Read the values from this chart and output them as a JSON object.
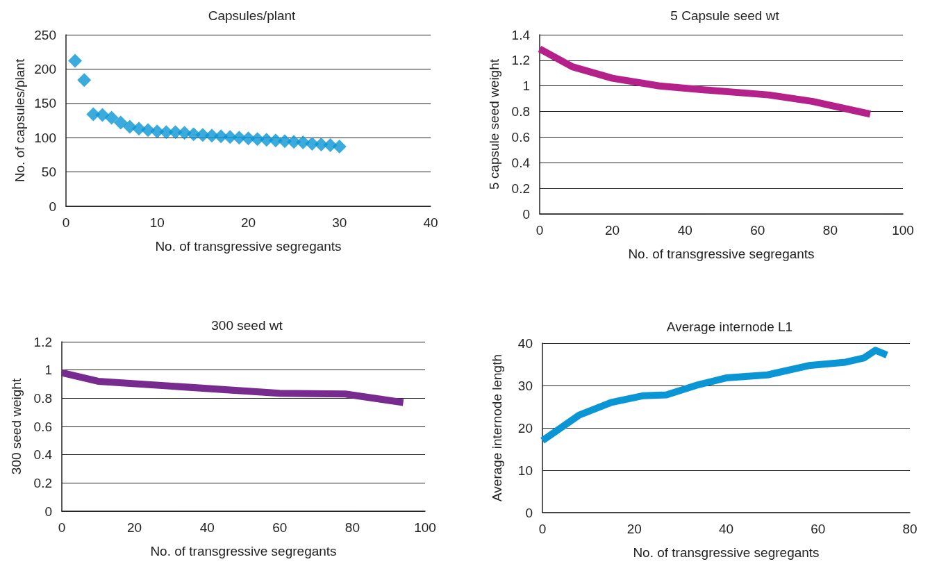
{
  "chart_data": [
    {
      "type": "scatter",
      "title": "Capsules/plant",
      "xlabel": "No. of transgressive segregants",
      "ylabel": "No. of capsules/plant",
      "marker": "diamond",
      "grid": "y",
      "color": "#0a96d4",
      "x": [
        1,
        2,
        3,
        4,
        5,
        6,
        7,
        8,
        9,
        10,
        11,
        12,
        13,
        14,
        15,
        16,
        17,
        18,
        19,
        20,
        21,
        22,
        23,
        24,
        25,
        26,
        27,
        28,
        29,
        30
      ],
      "values": [
        212,
        184,
        134,
        133,
        129,
        122,
        116,
        113,
        111,
        109,
        108,
        108,
        107,
        105,
        104,
        103,
        102,
        101,
        100,
        99,
        98,
        97,
        96,
        95,
        94,
        93,
        91,
        90,
        89,
        87
      ],
      "xlim": [
        0,
        40
      ],
      "xticks": [
        0,
        10,
        20,
        30,
        40
      ],
      "ylim": [
        0,
        250
      ],
      "yticks": [
        0,
        50,
        100,
        150,
        200,
        250
      ]
    },
    {
      "type": "line",
      "title": "5 Capsule seed wt",
      "xlabel": "No. of transgressive segregants",
      "ylabel": "5 capsule seed weight",
      "grid": "y",
      "color": "#b5218a",
      "x": [
        0,
        9,
        20,
        33,
        45,
        63,
        75,
        91
      ],
      "values": [
        1.29,
        1.15,
        1.06,
        1.0,
        0.97,
        0.93,
        0.88,
        0.78
      ],
      "xlim": [
        0,
        100
      ],
      "xticks": [
        0,
        20,
        40,
        60,
        80,
        100
      ],
      "ylim": [
        0,
        1.4
      ],
      "yticks": [
        0,
        0.2,
        0.4,
        0.6,
        0.8,
        1,
        1.2,
        1.4
      ]
    },
    {
      "type": "line",
      "title": "300 seed wt",
      "xlabel": "No. of transgressive segregants",
      "ylabel": "300 seed weight",
      "grid": "y",
      "color": "#772b8e",
      "x": [
        0,
        10,
        60,
        78,
        94
      ],
      "values": [
        0.98,
        0.92,
        0.835,
        0.83,
        0.77
      ],
      "xlim": [
        0,
        100
      ],
      "xticks": [
        0,
        20,
        40,
        60,
        80,
        100
      ],
      "ylim": [
        0,
        1.2
      ],
      "yticks": [
        0,
        0.2,
        0.4,
        0.6,
        0.8,
        1,
        1.2
      ]
    },
    {
      "type": "line",
      "title": "Average internode L1",
      "xlabel": "No. of transgressive segregants",
      "ylabel": "Average internode length",
      "grid": "y",
      "color": "#0a96d4",
      "x": [
        0,
        8,
        15,
        22,
        27,
        34,
        40,
        49,
        58,
        66,
        70,
        72.5,
        75
      ],
      "values": [
        17,
        23,
        26,
        27.6,
        27.8,
        30.2,
        31.8,
        32.5,
        34.7,
        35.5,
        36.5,
        38.3,
        37.2
      ],
      "xlim": [
        0,
        80
      ],
      "xticks": [
        0,
        20,
        40,
        60,
        80
      ],
      "ylim": [
        0,
        40
      ],
      "yticks": [
        0,
        10,
        20,
        30,
        40
      ]
    }
  ]
}
